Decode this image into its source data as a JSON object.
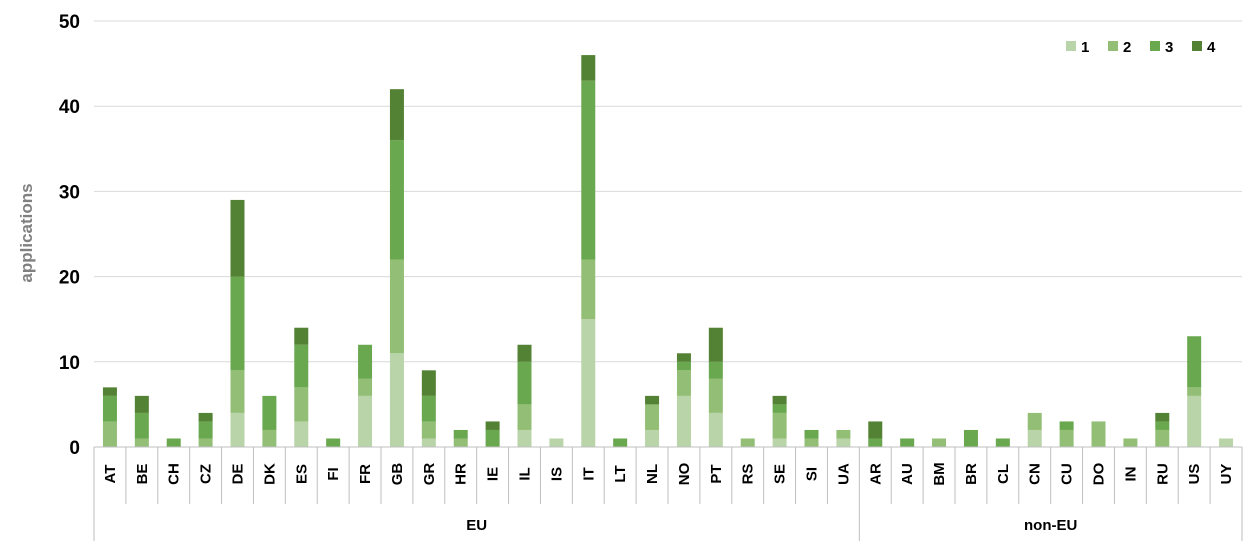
{
  "chart_data": {
    "type": "bar",
    "stacked": true,
    "title": "",
    "xlabel": "",
    "ylabel": "applications",
    "ylim": [
      0,
      50
    ],
    "yticks": [
      0,
      10,
      20,
      30,
      40,
      50
    ],
    "grid": true,
    "legend_position": "top-right",
    "categories": [
      "AT",
      "BE",
      "CH",
      "CZ",
      "DE",
      "DK",
      "ES",
      "FI",
      "FR",
      "GB",
      "GR",
      "HR",
      "IE",
      "IL",
      "IS",
      "IT",
      "LT",
      "NL",
      "NO",
      "PT",
      "RS",
      "SE",
      "SI",
      "UA",
      "AR",
      "AU",
      "BM",
      "BR",
      "CL",
      "CN",
      "CU",
      "DO",
      "IN",
      "RU",
      "US",
      "UY"
    ],
    "groups": [
      {
        "label": "EU",
        "count": 24
      },
      {
        "label": "non-EU",
        "count": 12
      }
    ],
    "series": [
      {
        "name": "1",
        "color": "#b9d4a8",
        "values": [
          0,
          0,
          0,
          0,
          4,
          0,
          3,
          0,
          6,
          11,
          1,
          0,
          0,
          2,
          1,
          15,
          0,
          2,
          6,
          4,
          0,
          1,
          0,
          1,
          0,
          0,
          0,
          0,
          0,
          2,
          0,
          0,
          0,
          0,
          6,
          1
        ]
      },
      {
        "name": "2",
        "color": "#93be76",
        "values": [
          3,
          1,
          0,
          1,
          5,
          2,
          4,
          0,
          2,
          11,
          2,
          1,
          0,
          3,
          0,
          7,
          0,
          3,
          3,
          4,
          1,
          3,
          1,
          1,
          0,
          0,
          1,
          0,
          0,
          2,
          2,
          3,
          1,
          2,
          1,
          0
        ]
      },
      {
        "name": "3",
        "color": "#6aa84f",
        "values": [
          3,
          3,
          1,
          2,
          11,
          4,
          5,
          1,
          4,
          14,
          3,
          1,
          2,
          5,
          0,
          21,
          1,
          0,
          1,
          2,
          0,
          1,
          1,
          0,
          1,
          1,
          0,
          2,
          1,
          0,
          1,
          0,
          0,
          1,
          6,
          0
        ]
      },
      {
        "name": "4",
        "color": "#548235",
        "values": [
          1,
          2,
          0,
          1,
          9,
          0,
          2,
          0,
          0,
          6,
          3,
          0,
          1,
          2,
          0,
          3,
          0,
          1,
          1,
          4,
          0,
          1,
          0,
          0,
          2,
          0,
          0,
          0,
          0,
          0,
          0,
          0,
          0,
          1,
          0,
          0
        ]
      }
    ]
  }
}
